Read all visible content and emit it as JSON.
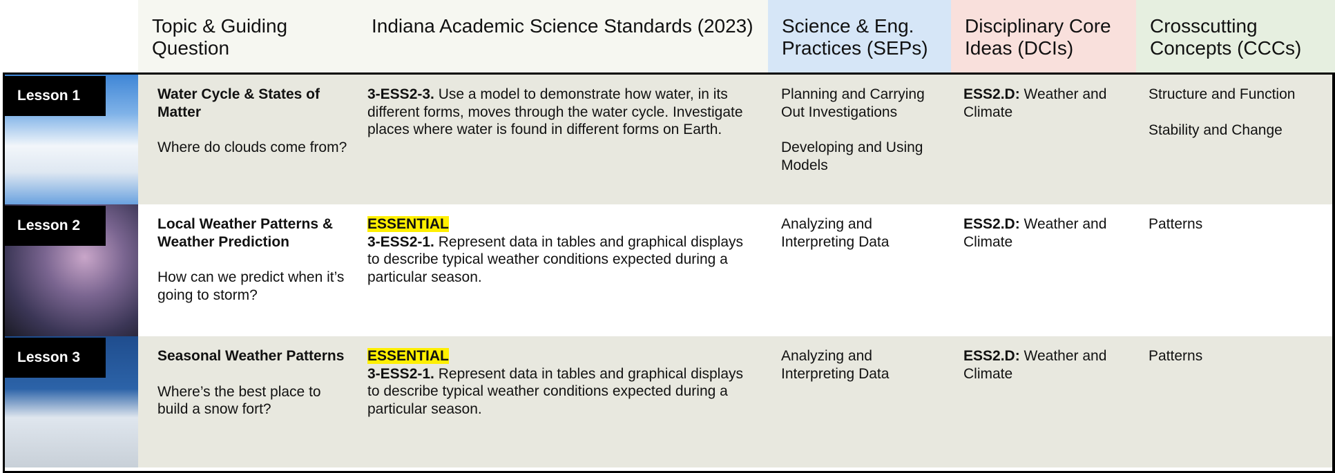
{
  "header": {
    "columns": [
      "Topic & Guiding Question",
      "Indiana Academic Science Standards (2023)",
      "Science & Eng. Practices (SEPs)",
      "Disciplinary Core Ideas (DCIs)",
      "Crosscutting Concepts (CCCs)"
    ]
  },
  "rows": [
    {
      "lesson": "Lesson 1",
      "topic_title": "Water Cycle & States of Matter",
      "question": "Where do clouds come from?",
      "standard_code": "3-ESS2-3.",
      "standard_text": "Use a model to demonstrate how water, in its different forms, moves through the water cycle. Investigate places where water is found in different forms on Earth.",
      "seps": [
        "Planning and Carrying Out Investigations",
        "Developing and Using Models"
      ],
      "dci_code": "ESS2.D:",
      "dci_text": "Weather and Climate",
      "cccs": [
        "Structure and Function",
        "Stability and Change"
      ]
    },
    {
      "lesson": "Lesson 2",
      "topic_title": "Local Weather Patterns & Weather Prediction",
      "question": "How can we predict when it’s going to storm?",
      "essential": "ESSENTIAL",
      "standard_code": "3-ESS2-1.",
      "standard_text": "Represent data in tables and graphical displays to describe typical weather conditions expected during a particular season.",
      "seps": [
        "Analyzing and Interpreting Data"
      ],
      "dci_code": "ESS2.D:",
      "dci_text": "Weather and Climate",
      "cccs": [
        "Patterns"
      ]
    },
    {
      "lesson": "Lesson 3",
      "topic_title": "Seasonal Weather Patterns",
      "question": "Where’s the best place to build a snow fort?",
      "essential": "ESSENTIAL",
      "standard_code": "3-ESS2-1.",
      "standard_text": "Represent data in tables and graphical displays to describe typical weather conditions expected during a particular season.",
      "seps": [
        "Analyzing and Interpreting Data"
      ],
      "dci_code": "ESS2.D:",
      "dci_text": "Weather and Climate",
      "cccs": [
        "Patterns"
      ]
    }
  ]
}
